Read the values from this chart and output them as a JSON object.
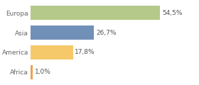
{
  "categories": [
    "Europa",
    "Asia",
    "America",
    "Africa"
  ],
  "values": [
    54.5,
    26.7,
    17.8,
    1.0
  ],
  "labels": [
    "54,5%",
    "26,7%",
    "17,8%",
    "1,0%"
  ],
  "bar_colors": [
    "#b5c98a",
    "#7090b8",
    "#f5c96a",
    "#f0a050"
  ],
  "background_color": "#ffffff",
  "xlim": [
    0,
    70
  ],
  "bar_height": 0.72,
  "label_fontsize": 6.5,
  "tick_fontsize": 6.5,
  "grid_color": "#dddddd"
}
